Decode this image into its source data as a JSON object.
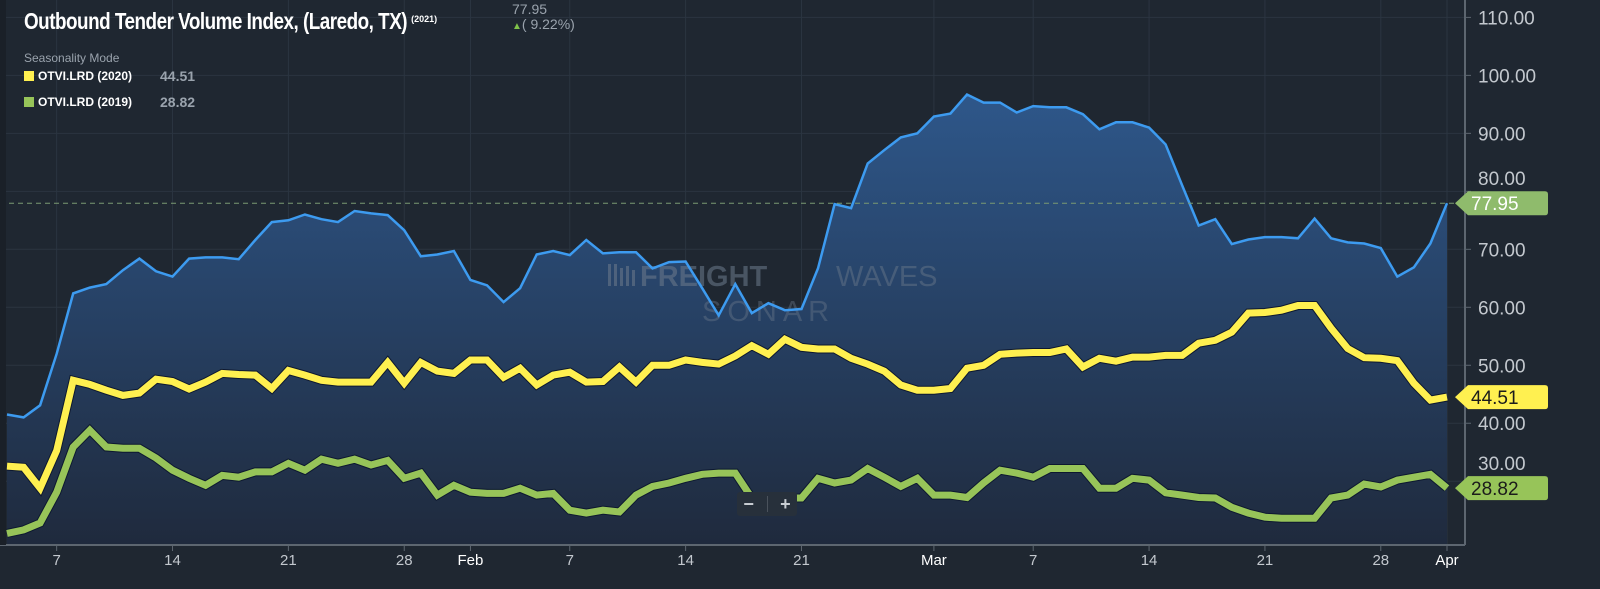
{
  "header": {
    "title": "Outbound Tender Volume Index, (Laredo, TX)",
    "year_tag": "(2021)",
    "last_value": "77.95",
    "change": "( 9.22%)",
    "change_direction": "up",
    "mode_label": "Seasonality Mode"
  },
  "legend": [
    {
      "label": "OTVI.LRD (2020)",
      "value": "44.51",
      "color": "#fff050"
    },
    {
      "label": "OTVI.LRD (2019)",
      "value": "28.82",
      "color": "#97c459"
    }
  ],
  "watermark": {
    "line1a": "FREIGHT",
    "line1b": "WAVES",
    "line2": "SONAR"
  },
  "zoom_controls": {
    "minus": "−",
    "plus": "+"
  },
  "colors": {
    "background": "#1f2731",
    "series_2021": "#3d9bf0",
    "series_2020": "#fff050",
    "series_2019": "#97c459",
    "area_top": "#2e578a",
    "area_bottom": "#1f2a3d"
  },
  "chart_data": {
    "type": "line",
    "title": "Outbound Tender Volume Index, (Laredo, TX)",
    "ylim": [
      19,
      113
    ],
    "y_ticks": [
      "110.00",
      "100.00",
      "90.00",
      "80.00",
      "70.00",
      "60.00",
      "50.00",
      "40.00",
      "30.00"
    ],
    "grid": true,
    "x_ticks": [
      {
        "date": "2021-01-07",
        "label": "7"
      },
      {
        "date": "2021-01-14",
        "label": "14"
      },
      {
        "date": "2021-01-21",
        "label": "21"
      },
      {
        "date": "2021-01-28",
        "label": "28"
      },
      {
        "date": "2021-02-01",
        "label": "Feb"
      },
      {
        "date": "2021-02-07",
        "label": "7"
      },
      {
        "date": "2021-02-14",
        "label": "14"
      },
      {
        "date": "2021-02-21",
        "label": "21"
      },
      {
        "date": "2021-03-01",
        "label": "Mar"
      },
      {
        "date": "2021-03-07",
        "label": "7"
      },
      {
        "date": "2021-03-14",
        "label": "14"
      },
      {
        "date": "2021-03-21",
        "label": "21"
      },
      {
        "date": "2021-03-28",
        "label": "28"
      },
      {
        "date": "2021-04-01",
        "label": "Apr"
      }
    ],
    "x": [
      "2021-01-04",
      "2021-01-05",
      "2021-01-06",
      "2021-01-07",
      "2021-01-08",
      "2021-01-09",
      "2021-01-10",
      "2021-01-11",
      "2021-01-12",
      "2021-01-13",
      "2021-01-14",
      "2021-01-15",
      "2021-01-16",
      "2021-01-17",
      "2021-01-18",
      "2021-01-19",
      "2021-01-20",
      "2021-01-21",
      "2021-01-22",
      "2021-01-23",
      "2021-01-24",
      "2021-01-25",
      "2021-01-26",
      "2021-01-27",
      "2021-01-28",
      "2021-01-29",
      "2021-01-30",
      "2021-01-31",
      "2021-02-01",
      "2021-02-02",
      "2021-02-03",
      "2021-02-04",
      "2021-02-05",
      "2021-02-06",
      "2021-02-07",
      "2021-02-08",
      "2021-02-09",
      "2021-02-10",
      "2021-02-11",
      "2021-02-12",
      "2021-02-13",
      "2021-02-14",
      "2021-02-15",
      "2021-02-16",
      "2021-02-17",
      "2021-02-18",
      "2021-02-19",
      "2021-02-20",
      "2021-02-21",
      "2021-02-22",
      "2021-02-23",
      "2021-02-24",
      "2021-02-25",
      "2021-02-26",
      "2021-02-27",
      "2021-02-28",
      "2021-03-01",
      "2021-03-02",
      "2021-03-03",
      "2021-03-04",
      "2021-03-05",
      "2021-03-06",
      "2021-03-07",
      "2021-03-08",
      "2021-03-09",
      "2021-03-10",
      "2021-03-11",
      "2021-03-12",
      "2021-03-13",
      "2021-03-14",
      "2021-03-15",
      "2021-03-16",
      "2021-03-17",
      "2021-03-18",
      "2021-03-19",
      "2021-03-20",
      "2021-03-21",
      "2021-03-22",
      "2021-03-23",
      "2021-03-24",
      "2021-03-25",
      "2021-03-26",
      "2021-03-27",
      "2021-03-28",
      "2021-03-29",
      "2021-03-30",
      "2021-03-31",
      "2021-04-01"
    ],
    "series": [
      {
        "key": "s2021",
        "style": "area",
        "color": "#3d9bf0",
        "last_label": "77.95",
        "label_bg": "#8fbb6c",
        "label_fg": "#ffffff",
        "values": [
          41.5,
          41.0,
          43.1,
          52.0,
          62.4,
          63.4,
          64.0,
          66.4,
          68.4,
          66.2,
          65.3,
          68.4,
          68.6,
          68.6,
          68.3,
          71.6,
          74.7,
          75.0,
          76.0,
          75.2,
          74.7,
          76.6,
          76.2,
          75.9,
          73.3,
          68.8,
          69.1,
          69.7,
          64.7,
          63.8,
          60.9,
          63.3,
          69.1,
          69.7,
          69.0,
          71.6,
          69.3,
          69.5,
          69.5,
          66.7,
          67.8,
          67.9,
          63.3,
          58.6,
          64.0,
          59.0,
          60.7,
          59.5,
          59.7,
          66.7,
          77.8,
          77.1,
          84.8,
          87.1,
          89.3,
          90.0,
          92.9,
          93.4,
          96.7,
          95.3,
          95.3,
          93.6,
          94.7,
          94.5,
          94.5,
          93.3,
          90.7,
          91.9,
          91.9,
          91.0,
          88.1,
          81.0,
          74.1,
          75.2,
          70.9,
          71.7,
          72.1,
          72.1,
          71.9,
          75.3,
          71.9,
          71.2,
          71.0,
          70.2,
          65.3,
          66.9,
          71.0,
          77.95
        ]
      },
      {
        "key": "s2020",
        "name": "OTVI.LRD (2020)",
        "style": "line",
        "color": "#fff050",
        "last_label": "44.51",
        "label_bg": "#fff050",
        "label_fg": "#1b1b1b",
        "values": [
          32.6,
          32.4,
          28.8,
          35.3,
          47.4,
          46.7,
          45.7,
          44.8,
          45.2,
          47.6,
          47.2,
          45.9,
          47.1,
          48.6,
          48.4,
          48.3,
          46.0,
          49.1,
          48.3,
          47.4,
          47.1,
          47.1,
          47.1,
          50.5,
          46.9,
          50.5,
          49.0,
          48.6,
          50.9,
          50.9,
          47.9,
          49.5,
          46.6,
          48.3,
          48.8,
          47.1,
          47.2,
          49.7,
          47.1,
          50.0,
          50.0,
          50.9,
          50.5,
          50.2,
          51.6,
          53.4,
          51.9,
          54.5,
          53.1,
          52.8,
          52.8,
          51.2,
          50.2,
          49.0,
          46.6,
          45.7,
          45.7,
          46.0,
          49.5,
          50.0,
          51.9,
          52.1,
          52.2,
          52.2,
          52.8,
          49.7,
          51.2,
          50.7,
          51.4,
          51.4,
          51.7,
          51.7,
          53.8,
          54.3,
          55.7,
          59.0,
          59.1,
          59.5,
          60.3,
          60.3,
          56.4,
          52.9,
          51.3,
          51.2,
          50.8,
          46.9,
          44.0,
          44.51
        ]
      },
      {
        "key": "s2019",
        "name": "OTVI.LRD (2019)",
        "style": "line",
        "color": "#97c459",
        "last_label": "28.82",
        "label_bg": "#97c459",
        "label_fg": "#1b1b1b",
        "values": [
          21.0,
          21.6,
          22.8,
          28.1,
          35.9,
          38.8,
          35.9,
          35.7,
          35.7,
          34.0,
          31.9,
          30.5,
          29.3,
          31.0,
          30.7,
          31.6,
          31.6,
          33.1,
          31.9,
          33.8,
          33.1,
          33.8,
          32.8,
          33.6,
          30.5,
          31.4,
          27.6,
          29.3,
          28.1,
          27.9,
          27.9,
          28.8,
          27.6,
          27.9,
          25.0,
          24.5,
          25.0,
          24.7,
          27.6,
          29.1,
          29.7,
          30.5,
          31.2,
          31.4,
          31.4,
          27.1,
          26.4,
          27.1,
          27.1,
          30.5,
          29.7,
          30.2,
          32.2,
          30.7,
          29.1,
          30.5,
          27.6,
          27.6,
          27.2,
          29.7,
          31.9,
          31.4,
          30.7,
          32.2,
          32.2,
          32.2,
          28.8,
          28.8,
          30.5,
          30.2,
          28.0,
          27.6,
          27.2,
          27.1,
          25.5,
          24.5,
          23.8,
          23.6,
          23.6,
          23.6,
          27.1,
          27.6,
          29.5,
          29.0,
          30.2,
          30.7,
          31.2,
          28.82
        ]
      }
    ],
    "reference_line": {
      "value": 77.95,
      "style": "dashed"
    }
  }
}
